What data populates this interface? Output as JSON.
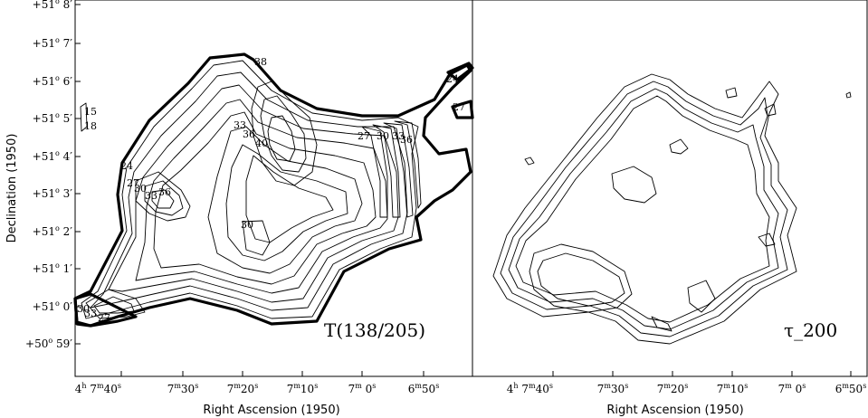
{
  "left_panel": {
    "label": "T(138/205)",
    "x_axis_title": "Right Ascension (1950)",
    "y_axis_title": "Declination (1950)",
    "y_ticks": [
      {
        "deg": "+51",
        "o": "o",
        "min": " 8′"
      },
      {
        "deg": "+51",
        "o": "o",
        "min": " 7′"
      },
      {
        "deg": "+51",
        "o": "o",
        "min": " 6′"
      },
      {
        "deg": "+51",
        "o": "o",
        "min": " 5′"
      },
      {
        "deg": "+51",
        "o": "o",
        "min": " 4′"
      },
      {
        "deg": "+51",
        "o": "o",
        "min": " 3′"
      },
      {
        "deg": "+51",
        "o": "o",
        "min": " 2′"
      },
      {
        "deg": "+51",
        "o": "o",
        "min": " 1′"
      },
      {
        "deg": "+51",
        "o": "o",
        "min": " 0′"
      },
      {
        "deg": "+50",
        "o": "o",
        "min": " 59′"
      }
    ],
    "contour_labels": [
      "38",
      "33",
      "36",
      "40",
      "27",
      "30",
      "33",
      "36",
      "27",
      "30",
      "33",
      "36",
      "30",
      "15",
      "18",
      "24",
      "24",
      "27",
      "30",
      "33",
      "27"
    ]
  },
  "right_panel": {
    "label": "τ_200",
    "x_axis_title": "Right Ascension (1950)"
  },
  "x_ticks": [
    {
      "a": "4",
      "au": "h",
      "b": " 7",
      "bu": "m",
      "c": "40",
      "cu": "s"
    },
    {
      "a": "",
      "au": "",
      "b": "7",
      "bu": "m",
      "c": "30",
      "cu": "s"
    },
    {
      "a": "",
      "au": "",
      "b": "7",
      "bu": "m",
      "c": "20",
      "cu": "s"
    },
    {
      "a": "",
      "au": "",
      "b": "7",
      "bu": "m",
      "c": "10",
      "cu": "s"
    },
    {
      "a": "",
      "au": "",
      "b": "7",
      "bu": "m",
      "c": " 0",
      "cu": "s"
    },
    {
      "a": "",
      "au": "",
      "b": "6",
      "bu": "m",
      "c": "50",
      "cu": "s"
    }
  ]
}
